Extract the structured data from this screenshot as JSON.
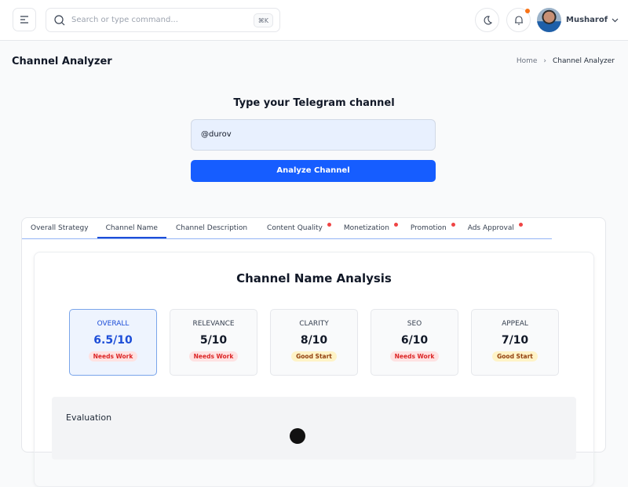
{
  "header": {
    "search_placeholder": "Search or type command...",
    "shortcut": "⌘K",
    "user_name": "Musharof",
    "icons": [
      "menu-icon",
      "search-icon",
      "moon-icon",
      "bell-icon",
      "chevron-down-icon"
    ],
    "notification_dot_color": "#f97316"
  },
  "page": {
    "title": "Channel Analyzer",
    "breadcrumb": [
      "Home",
      "Channel Analyzer"
    ]
  },
  "form": {
    "title": "Type your Telegram channel",
    "input_value": "@durov",
    "button_label": "Analyze Channel",
    "accent": "#165dff"
  },
  "tabs": [
    {
      "label": "Overall Strategy",
      "active": false,
      "alert": false
    },
    {
      "label": "Channel Name",
      "active": true,
      "alert": false
    },
    {
      "label": "Channel Description",
      "active": false,
      "alert": false
    },
    {
      "label": "Content Quality",
      "active": false,
      "alert": true
    },
    {
      "label": "Monetization",
      "active": false,
      "alert": true
    },
    {
      "label": "Promotion",
      "active": false,
      "alert": true
    },
    {
      "label": "Ads Approval",
      "active": false,
      "alert": true
    }
  ],
  "analysis": {
    "title": "Channel Name Analysis",
    "scores": [
      {
        "label": "OVERALL",
        "value": "6.5/10",
        "status": "Needs Work"
      },
      {
        "label": "RELEVANCE",
        "value": "5/10",
        "status": "Needs Work"
      },
      {
        "label": "CLARITY",
        "value": "8/10",
        "status": "Good Start"
      },
      {
        "label": "SEO",
        "value": "6/10",
        "status": "Needs Work"
      },
      {
        "label": "APPEAL",
        "value": "7/10",
        "status": "Good Start"
      }
    ],
    "evaluation_title": "Evaluation"
  }
}
